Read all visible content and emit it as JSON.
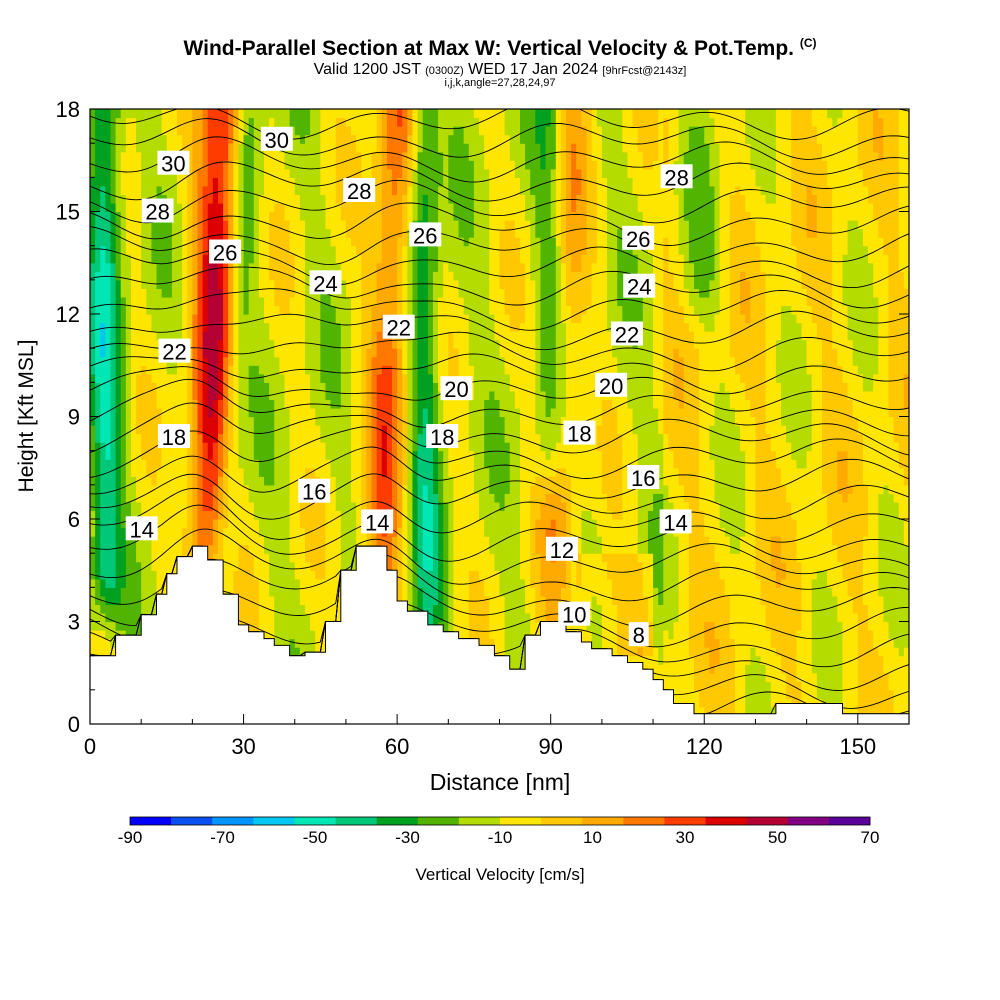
{
  "chart_data": {
    "type": "heatmap",
    "title": "Wind-Parallel Section at Max W: Vertical Velocity & Pot.Temp.",
    "title_mark": "(C)",
    "subtitle_main": "Valid 1200 JST",
    "subtitle_utc": "(0300Z)",
    "subtitle_date": "WED 17 Jan 2024",
    "subtitle_fcst": "[9hrFcst@2143z]",
    "subtitle_indices": "i,j,k,angle=27,28,24,97",
    "xlabel": "Distance [nm]",
    "ylabel": "Height [Kft MSL]",
    "xlim": [
      0,
      160
    ],
    "ylim": [
      0,
      18
    ],
    "xticks": [
      0,
      30,
      60,
      90,
      120,
      150
    ],
    "yticks": [
      0,
      3,
      6,
      9,
      12,
      15,
      18
    ],
    "colorbar_label": "Vertical Velocity [cm/s]",
    "colorbar_ticks": [
      -90,
      -70,
      -50,
      -30,
      -10,
      10,
      30,
      50,
      70
    ],
    "colorbar_colors": [
      "#0000ff",
      "#0a4ff0",
      "#0096ff",
      "#00c8f0",
      "#00e6b4",
      "#00c878",
      "#00a020",
      "#50b400",
      "#b4dc00",
      "#ffe600",
      "#ffc800",
      "#ffaa00",
      "#ff7800",
      "#ff3c00",
      "#dc0000",
      "#b40032",
      "#820082",
      "#5a0096"
    ],
    "terrain_profile": {
      "x": [
        0,
        5,
        5,
        10,
        10,
        13,
        13,
        15,
        15,
        17,
        17,
        20,
        20,
        23,
        23,
        26,
        26,
        29,
        29,
        31,
        31,
        34,
        34,
        36,
        36,
        39,
        39,
        42,
        42,
        46,
        46,
        49,
        49,
        52,
        52,
        55,
        55,
        58,
        58,
        60,
        60,
        62,
        62,
        66,
        66,
        69,
        69,
        72,
        72,
        76,
        76,
        79,
        79,
        82,
        82,
        85,
        85,
        88,
        88,
        93,
        93,
        96,
        96,
        98,
        98,
        102,
        102,
        105,
        105,
        108,
        108,
        110,
        110,
        112,
        112,
        114,
        114,
        118,
        118,
        122,
        122,
        134,
        134,
        147,
        147,
        160
      ],
      "y": [
        2,
        2,
        2.6,
        2.6,
        3.2,
        3.2,
        3.8,
        3.8,
        4.4,
        4.4,
        4.9,
        4.9,
        5.2,
        5.2,
        4.8,
        4.8,
        3.8,
        3.8,
        2.9,
        2.9,
        2.7,
        2.7,
        2.5,
        2.5,
        2.3,
        2.3,
        2.0,
        2.0,
        2.1,
        2.1,
        3.0,
        3.0,
        4.5,
        4.5,
        5.2,
        5.2,
        5.2,
        5.2,
        4.5,
        4.5,
        3.6,
        3.6,
        3.3,
        3.3,
        2.9,
        2.9,
        2.7,
        2.7,
        2.5,
        2.5,
        2.3,
        2.3,
        2.0,
        2.0,
        1.6,
        1.6,
        2.6,
        2.6,
        3.0,
        3.0,
        2.7,
        2.7,
        2.4,
        2.4,
        2.2,
        2.2,
        2.0,
        2.0,
        1.8,
        1.8,
        1.6,
        1.6,
        1.3,
        1.3,
        1.0,
        1.0,
        0.6,
        0.6,
        0.3,
        0.3,
        0.3,
        0.3,
        0.6,
        0.6,
        0.3,
        0.3
      ]
    },
    "contour_labels": [
      {
        "text": "30",
        "x": 16.3,
        "y": 16.4
      },
      {
        "text": "30",
        "x": 36.5,
        "y": 17.1
      },
      {
        "text": "28",
        "x": 13.2,
        "y": 15.0
      },
      {
        "text": "28",
        "x": 52.6,
        "y": 15.6
      },
      {
        "text": "28",
        "x": 114.6,
        "y": 16.0
      },
      {
        "text": "26",
        "x": 26.4,
        "y": 13.8
      },
      {
        "text": "26",
        "x": 65.5,
        "y": 14.3
      },
      {
        "text": "26",
        "x": 107.1,
        "y": 14.2
      },
      {
        "text": "24",
        "x": 46.0,
        "y": 12.9
      },
      {
        "text": "24",
        "x": 107.3,
        "y": 12.8
      },
      {
        "text": "22",
        "x": 16.5,
        "y": 10.9
      },
      {
        "text": "22",
        "x": 60.3,
        "y": 11.6
      },
      {
        "text": "22",
        "x": 104.9,
        "y": 11.4
      },
      {
        "text": "20",
        "x": 71.6,
        "y": 9.8
      },
      {
        "text": "20",
        "x": 101.8,
        "y": 9.9
      },
      {
        "text": "18",
        "x": 16.4,
        "y": 8.4
      },
      {
        "text": "18",
        "x": 68.8,
        "y": 8.4
      },
      {
        "text": "18",
        "x": 95.6,
        "y": 8.5
      },
      {
        "text": "16",
        "x": 43.8,
        "y": 6.8
      },
      {
        "text": "16",
        "x": 108.1,
        "y": 7.2
      },
      {
        "text": "14",
        "x": 10.1,
        "y": 5.7
      },
      {
        "text": "14",
        "x": 56.1,
        "y": 5.9
      },
      {
        "text": "14",
        "x": 114.4,
        "y": 5.9
      },
      {
        "text": "12",
        "x": 92.2,
        "y": 5.1
      },
      {
        "text": "10",
        "x": 94.6,
        "y": 3.2
      },
      {
        "text": "8",
        "x": 107.2,
        "y": 2.6
      }
    ],
    "updraft_bands": [
      {
        "x_bottom": 22,
        "x_top": 26,
        "peak": 60,
        "width": 4.5
      },
      {
        "x_bottom": 56,
        "x_top": 60,
        "peak": 38,
        "width": 4
      },
      {
        "x_bottom": 90,
        "x_top": 94,
        "peak": 22,
        "width": 4
      }
    ],
    "downdraft_bands": [
      {
        "x_bottom": 3,
        "x_top": 3,
        "peak": -38,
        "width": 3.2,
        "y_from": 4.5
      },
      {
        "x_bottom": 24,
        "x_top": 31,
        "peak": -25,
        "width": 3
      },
      {
        "x_bottom": 66,
        "x_top": 65,
        "peak": -30,
        "width": 3
      },
      {
        "x_bottom": 90,
        "x_top": 90,
        "peak": -22,
        "width": 3,
        "y_from": 8
      },
      {
        "x_bottom": 120,
        "x_top": 120,
        "peak": -14,
        "width": 4,
        "y_from": 13
      }
    ]
  }
}
